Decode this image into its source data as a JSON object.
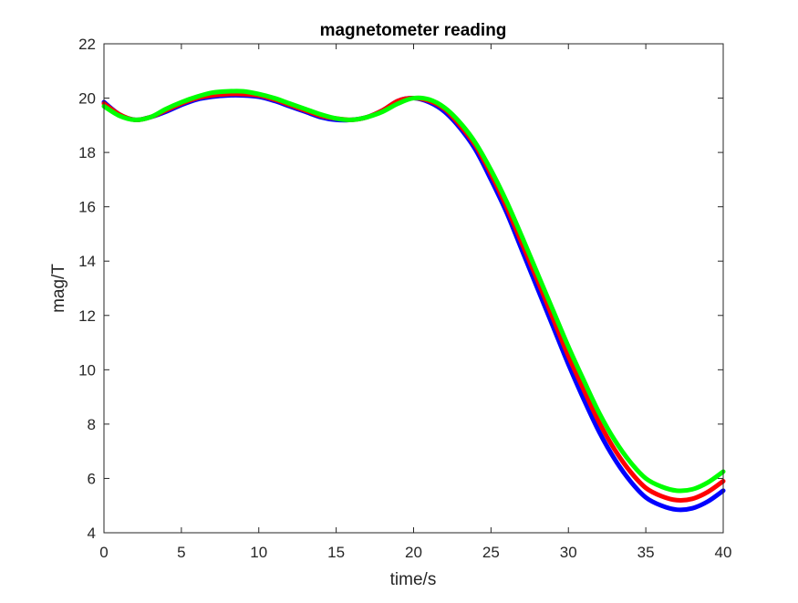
{
  "chart_data": {
    "type": "line",
    "title": "magnetometer reading",
    "xlabel": "time/s",
    "ylabel": "mag/T",
    "xlim": [
      0,
      40
    ],
    "ylim": [
      4,
      22
    ],
    "xticks": [
      0,
      5,
      10,
      15,
      20,
      25,
      30,
      35,
      40
    ],
    "yticks": [
      4,
      6,
      8,
      10,
      12,
      14,
      16,
      18,
      20,
      22
    ],
    "grid": false,
    "x": [
      0,
      1,
      2,
      3,
      4,
      5,
      6,
      7,
      8,
      9,
      10,
      11,
      12,
      13,
      14,
      15,
      16,
      17,
      18,
      19,
      20,
      21,
      22,
      23,
      24,
      25,
      26,
      27,
      28,
      29,
      30,
      31,
      32,
      33,
      34,
      35,
      36,
      37,
      38,
      39,
      40
    ],
    "series": [
      {
        "color": "#0000ff",
        "values": [
          19.85,
          19.4,
          19.2,
          19.3,
          19.5,
          19.75,
          19.95,
          20.05,
          20.1,
          20.1,
          20.05,
          19.9,
          19.7,
          19.5,
          19.3,
          19.2,
          19.2,
          19.3,
          19.55,
          19.9,
          20.0,
          19.85,
          19.5,
          18.9,
          18.1,
          17.0,
          15.8,
          14.4,
          13.0,
          11.6,
          10.2,
          8.9,
          7.7,
          6.7,
          5.9,
          5.3,
          5.0,
          4.85,
          4.9,
          5.15,
          5.55
        ]
      },
      {
        "color": "#ff0000",
        "values": [
          19.8,
          19.4,
          19.2,
          19.3,
          19.55,
          19.8,
          20.0,
          20.1,
          20.15,
          20.15,
          20.1,
          19.95,
          19.75,
          19.55,
          19.35,
          19.25,
          19.2,
          19.3,
          19.55,
          19.9,
          20.0,
          19.9,
          19.6,
          19.0,
          18.25,
          17.2,
          16.0,
          14.65,
          13.3,
          11.9,
          10.5,
          9.25,
          8.05,
          7.05,
          6.25,
          5.65,
          5.35,
          5.2,
          5.25,
          5.5,
          5.9
        ]
      },
      {
        "color": "#00ff00",
        "values": [
          19.7,
          19.35,
          19.2,
          19.3,
          19.6,
          19.85,
          20.05,
          20.2,
          20.25,
          20.25,
          20.15,
          20.0,
          19.8,
          19.6,
          19.4,
          19.25,
          19.2,
          19.3,
          19.5,
          19.8,
          20.0,
          19.95,
          19.65,
          19.1,
          18.35,
          17.35,
          16.2,
          14.9,
          13.55,
          12.2,
          10.85,
          9.6,
          8.4,
          7.4,
          6.6,
          6.0,
          5.7,
          5.55,
          5.6,
          5.85,
          6.25
        ]
      }
    ]
  }
}
